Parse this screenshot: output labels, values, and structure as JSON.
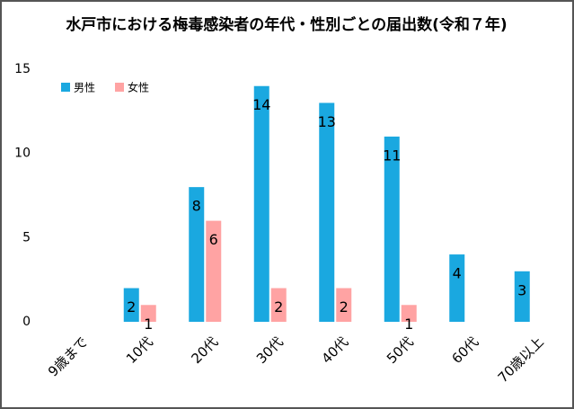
{
  "chart_data": {
    "type": "bar",
    "title": "水戸市における梅毒感染者の年代・性別ごとの届出数(令和７年)",
    "categories": [
      "9歳まで",
      "10代",
      "20代",
      "30代",
      "40代",
      "50代",
      "60代",
      "70歳以上"
    ],
    "series": [
      {
        "name": "男性",
        "color": "#1aa8e0",
        "values": [
          0,
          2,
          8,
          14,
          13,
          11,
          4,
          3
        ]
      },
      {
        "name": "女性",
        "color": "#ffa3a3",
        "values": [
          0,
          1,
          6,
          2,
          2,
          1,
          0,
          0
        ]
      }
    ],
    "ylim": [
      0,
      15
    ],
    "yticks": [
      0,
      5,
      10,
      15
    ],
    "grid": false,
    "legend": "top-left"
  }
}
